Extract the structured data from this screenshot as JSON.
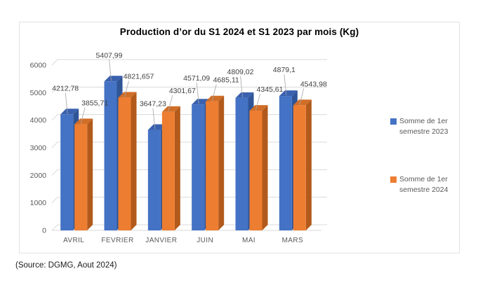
{
  "chart": {
    "title": "Production d’or du S1 2024 et S1 2023 par mois (Kg)",
    "source_note": "(Source: DGMG, Aout 2024)"
  },
  "chart_data": {
    "type": "bar",
    "style": "3d-clustered-column",
    "title": "Production d’or du S1 2024 et S1 2023 par mois (Kg)",
    "xlabel": "",
    "ylabel": "",
    "categories": [
      "AVRIL",
      "FEVRIER",
      "JANVIER",
      "JUIN",
      "MAI",
      "MARS"
    ],
    "series": [
      {
        "name": "Somme de 1er semestre 2023",
        "color": "#4472C4",
        "side_color": "#2F5597",
        "top_color": "#3A61AE",
        "values": [
          4212.78,
          5407.99,
          3647.23,
          4571.09,
          4809.02,
          4879.1
        ],
        "labels": [
          "4212,78",
          "5407,99",
          "3647,23",
          "4571,09",
          "4809,02",
          "4879,1"
        ]
      },
      {
        "name": "Somme de 1er semestre 2024",
        "color": "#ED7D31",
        "side_color": "#B25A1B",
        "top_color": "#D06E28",
        "values": [
          3855.71,
          4821.657,
          4301.67,
          4685.11,
          4345.61,
          4543.98
        ],
        "labels": [
          "3855,71",
          "4821,657",
          "4301,67",
          "4685,11",
          "4345,61",
          "4543,98"
        ]
      }
    ],
    "ylim": [
      0,
      6000
    ],
    "yticks": [
      0,
      1000,
      2000,
      3000,
      4000,
      5000,
      6000
    ],
    "grid": true,
    "legend_position": "right",
    "grid_color": "#D9D9D9",
    "leader_line_color": "#A6A6A6",
    "axis_text_color": "#595959",
    "data_label_color": "#404040"
  }
}
